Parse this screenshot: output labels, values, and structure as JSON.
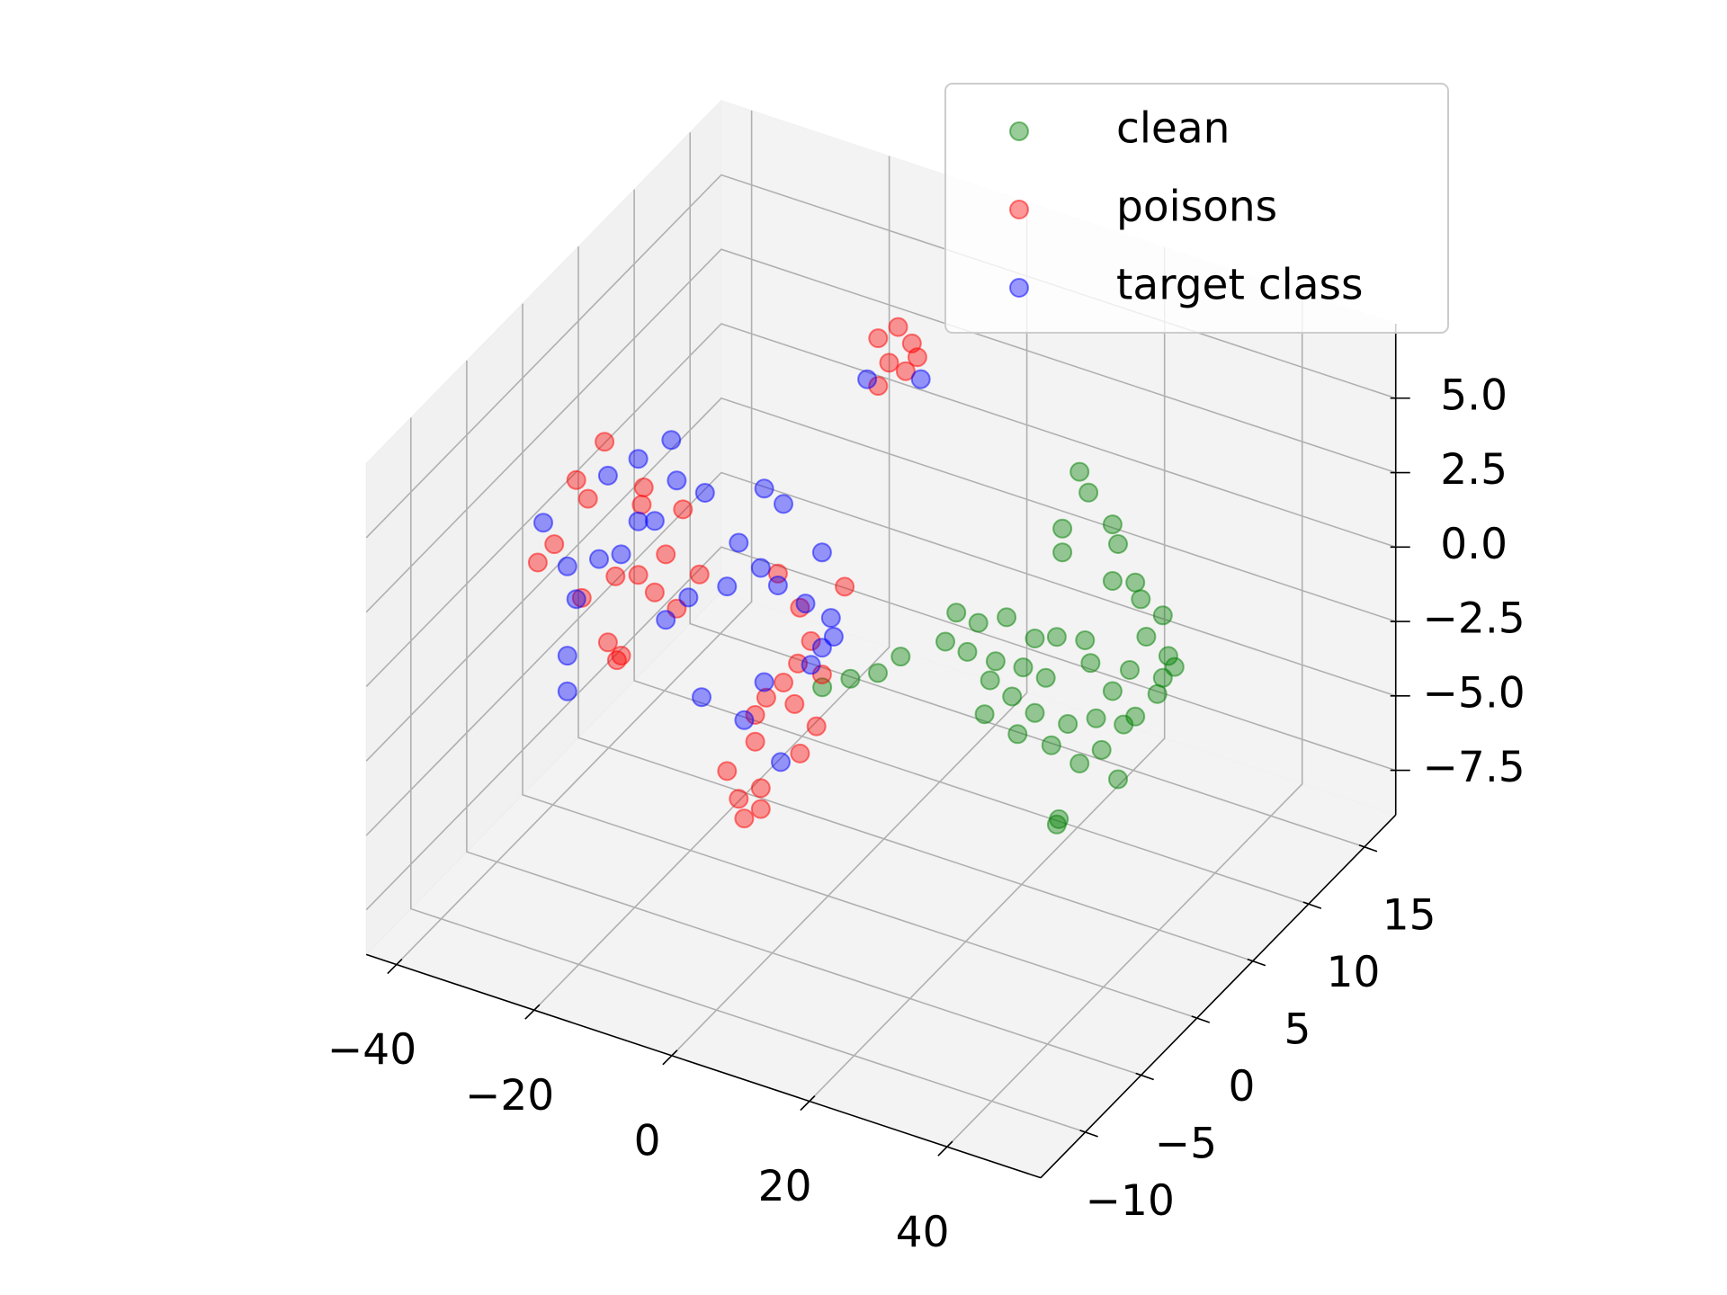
{
  "chart_data": {
    "type": "scatter3d",
    "xlim": [
      -44.4,
      53.6
    ],
    "ylim": [
      -14,
      17.8
    ],
    "zlim": [
      -9,
      7.5
    ],
    "xticks": [
      {
        "value": -40,
        "label": "−40"
      },
      {
        "value": -20,
        "label": "−20"
      },
      0,
      20,
      40
    ],
    "yticks": [
      {
        "value": -10,
        "label": "−10"
      },
      {
        "value": -5,
        "label": "−5"
      },
      0,
      5,
      10,
      15
    ],
    "zticks": [
      {
        "value": -7.5,
        "label": "−7.5"
      },
      {
        "value": -5,
        "label": "−5.0"
      },
      {
        "value": -2.5,
        "label": "−2.5"
      },
      {
        "value": 0,
        "label": "0.0"
      },
      {
        "value": 2.5,
        "label": "2.5"
      },
      {
        "value": 5,
        "label": "5.0"
      }
    ],
    "grid": true,
    "legend": "upper right",
    "series": [
      {
        "name": "clean",
        "color": "green",
        "x": [
          26.8,
          28.1,
          31.6,
          24.3,
          24.3,
          32.4,
          31.6,
          34.9,
          38.9,
          36.5,
          39.7,
          40.6,
          38.1,
          34.1,
          31.6,
          28.4,
          27.6,
          23.5,
          20.3,
          16.2,
          12.1,
          8.9,
          7.3,
          10.5,
          14.6,
          18.6,
          13.8,
          17.0,
          21.9,
          20.3,
          13.0,
          17.8,
          22.7,
          25.1,
          29.2,
          33.2,
          30.0,
          26.8,
          32.4,
          23.5,
          23.8,
          0.8,
          -2.5,
          -6.5,
          -10.6,
          35.7,
          38.9,
          34.9
        ],
        "y": [
          6,
          6,
          6,
          6,
          6,
          6,
          6,
          6,
          6,
          6,
          6,
          6,
          6,
          6,
          6,
          6,
          6,
          6,
          6,
          6,
          6,
          6,
          6,
          6,
          6,
          6,
          6,
          6,
          6,
          6,
          6,
          6,
          6,
          6,
          6,
          6,
          6,
          6,
          6,
          6,
          6,
          6,
          6,
          6,
          6,
          6,
          6,
          6
        ],
        "z": [
          5.0,
          4.4,
          3.6,
          2.9,
          2.1,
          3.0,
          1.7,
          1.9,
          1.1,
          0.2,
          -0.2,
          -0.5,
          -1.6,
          -1.1,
          -2.0,
          -1.3,
          -0.6,
          -0.8,
          -1.1,
          -0.7,
          -1.2,
          -1.1,
          -2.2,
          -2.3,
          -2.3,
          -2.2,
          -3.0,
          -3.3,
          -2.3,
          -3.6,
          -4.2,
          -4.5,
          -4.5,
          -3.6,
          -3.1,
          -3.0,
          -4.1,
          -4.8,
          -4.9,
          -7.1,
          -6.9,
          -3.2,
          -4.0,
          -4.5,
          -5.1,
          1.4,
          -1.0,
          -2.6
        ]
      },
      {
        "name": "poisons",
        "color": "red",
        "x": [
          -35.7,
          -33.3,
          -30.1,
          -26.0,
          -28.4,
          -24.4,
          -21.1,
          -17.1,
          -18.7,
          -15.5,
          -12.2,
          -20.3,
          -25.5,
          -24.2,
          -29.3,
          -20.6,
          -0.8,
          2.4,
          8.9,
          4.0,
          2.1,
          0.0,
          5.6,
          -2.5,
          1.6,
          -4.1,
          4.8,
          -4.1,
          2.4,
          -8.2,
          -3.3,
          -6.5,
          -5.7,
          -3.3,
          -23.6,
          -14.6,
          -12.2,
          -9.3,
          -7.3,
          -10.6,
          -8.2,
          -12.2,
          -6.5
        ],
        "y": [
          -4,
          -4,
          -4,
          -4,
          -4,
          -4,
          -4,
          -4,
          -4,
          -4,
          -4,
          -4,
          -4,
          -4,
          -4,
          -4,
          -4,
          -4,
          -4,
          -4,
          -4,
          -4,
          -4,
          -4,
          -4,
          -4,
          -4,
          -4,
          -4,
          -4,
          -4,
          -4,
          -4,
          -4,
          -4,
          -4,
          12,
          12,
          12,
          12,
          12,
          12,
          12
        ],
        "z": [
          1.0,
          1.8,
          4.2,
          5.8,
          3.7,
          1.4,
          1.7,
          2.7,
          1.3,
          1.0,
          2.4,
          4.7,
          -0.9,
          -1.4,
          0.3,
          4.1,
          3.3,
          2.4,
          3.6,
          1.4,
          0.5,
          -0.3,
          0.4,
          -1.0,
          -0.9,
          -1.7,
          -1.4,
          -2.6,
          -2.5,
          -3.9,
          -4.1,
          -4.7,
          -5.3,
          -4.8,
          -1.2,
          4.4,
          4.2,
          4.8,
          4.4,
          3.5,
          3.4,
          2.6,
          4.0
        ]
      },
      {
        "name": "target class",
        "color": "blue",
        "x": [
          -34.9,
          -31.4,
          -30.1,
          -31.4,
          -31.4,
          -25.5,
          -21.1,
          -16.3,
          -15.5,
          -18.7,
          -23.6,
          -11.4,
          -2.8,
          0.0,
          -6.5,
          -3.3,
          -8.2,
          -0.8,
          5.6,
          3.2,
          6.9,
          5.6,
          7.3,
          4.0,
          -2.8,
          -11.9,
          -5.7,
          -0.4,
          -21.1,
          -26.8,
          -17.1,
          -13.8,
          -13.8,
          -6.0
        ],
        "y": [
          -4,
          -4,
          -4,
          -4,
          -4,
          -4,
          -4,
          -4,
          -4,
          -4,
          -4,
          -4,
          -4,
          -4,
          -4,
          -4,
          -4,
          -4,
          -4,
          -4,
          -4,
          -4,
          -4,
          -4,
          -4,
          -4,
          -4,
          -4,
          -4,
          -4,
          -4,
          -4,
          12,
          12
        ],
        "z": [
          2.4,
          1.2,
          0.2,
          -1.8,
          -3.0,
          4.7,
          5.6,
          6.6,
          5.3,
          3.7,
          2.2,
          5.2,
          6.0,
          5.7,
          3.9,
          3.3,
          2.3,
          2.9,
          4.5,
          2.6,
          2.4,
          1.3,
          1.8,
          0.6,
          -0.5,
          -1.7,
          -2.0,
          -3.0,
          3.5,
          1.8,
          0.5,
          1.5,
          2.7,
          3.3
        ]
      }
    ]
  }
}
